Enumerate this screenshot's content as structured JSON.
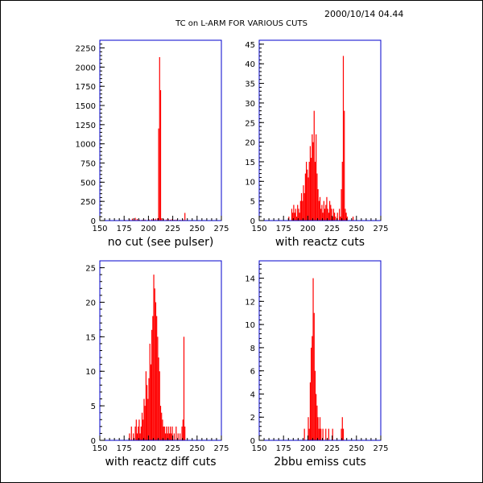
{
  "title": "TC on L-ARM FOR VARIOUS CUTS",
  "timestamp": "2000/10/14   04.44",
  "colors": {
    "frame": "#0000cc",
    "bars": "#ff0000",
    "text": "#000000"
  },
  "chart_data": [
    {
      "type": "bar",
      "subtitle": "no cut (see pulser)",
      "xlim": [
        150,
        275
      ],
      "ylim": [
        0,
        2350
      ],
      "xticks": [
        150,
        175,
        200,
        225,
        250,
        275
      ],
      "yticks": [
        0,
        250,
        500,
        750,
        1000,
        1250,
        1500,
        1750,
        2000,
        2250
      ],
      "bins": [
        [
          175,
          10
        ],
        [
          180,
          15
        ],
        [
          183,
          25
        ],
        [
          186,
          35
        ],
        [
          188,
          20
        ],
        [
          190,
          12
        ],
        [
          193,
          10
        ],
        [
          196,
          12
        ],
        [
          200,
          15
        ],
        [
          203,
          18
        ],
        [
          205,
          20
        ],
        [
          207,
          25
        ],
        [
          209,
          30
        ],
        [
          210,
          1200
        ],
        [
          211,
          2130
        ],
        [
          212,
          1700
        ],
        [
          213,
          30
        ],
        [
          215,
          20
        ],
        [
          218,
          15
        ],
        [
          220,
          18
        ],
        [
          222,
          12
        ],
        [
          224,
          20
        ],
        [
          226,
          10
        ],
        [
          228,
          12
        ],
        [
          232,
          10
        ],
        [
          235,
          15
        ],
        [
          237,
          100
        ]
      ]
    },
    {
      "type": "bar",
      "subtitle": "with reactz cuts",
      "xlim": [
        150,
        275
      ],
      "ylim": [
        0,
        46
      ],
      "xticks": [
        150,
        175,
        200,
        225,
        250,
        275
      ],
      "yticks": [
        0,
        5,
        10,
        15,
        20,
        25,
        30,
        35,
        40,
        45
      ],
      "bins": [
        [
          180,
          1
        ],
        [
          183,
          3
        ],
        [
          184,
          2
        ],
        [
          185,
          4
        ],
        [
          186,
          2
        ],
        [
          187,
          3
        ],
        [
          188,
          1
        ],
        [
          189,
          4
        ],
        [
          190,
          3
        ],
        [
          191,
          2
        ],
        [
          192,
          5
        ],
        [
          193,
          7
        ],
        [
          194,
          5
        ],
        [
          195,
          9
        ],
        [
          196,
          7
        ],
        [
          197,
          12
        ],
        [
          198,
          15
        ],
        [
          199,
          13
        ],
        [
          200,
          11
        ],
        [
          201,
          15
        ],
        [
          202,
          19
        ],
        [
          203,
          16
        ],
        [
          204,
          22
        ],
        [
          205,
          20
        ],
        [
          206,
          28
        ],
        [
          207,
          15
        ],
        [
          208,
          22
        ],
        [
          209,
          12
        ],
        [
          210,
          8
        ],
        [
          211,
          5
        ],
        [
          212,
          6
        ],
        [
          213,
          3
        ],
        [
          214,
          4
        ],
        [
          215,
          2
        ],
        [
          216,
          5
        ],
        [
          217,
          3
        ],
        [
          218,
          4
        ],
        [
          219,
          6
        ],
        [
          220,
          3
        ],
        [
          221,
          2
        ],
        [
          222,
          5
        ],
        [
          223,
          4
        ],
        [
          224,
          3
        ],
        [
          225,
          1
        ],
        [
          226,
          3
        ],
        [
          227,
          2
        ],
        [
          228,
          1
        ],
        [
          230,
          2
        ],
        [
          232,
          3
        ],
        [
          233,
          1
        ],
        [
          234,
          8
        ],
        [
          235,
          15
        ],
        [
          236,
          42
        ],
        [
          237,
          28
        ],
        [
          238,
          3
        ],
        [
          239,
          2
        ],
        [
          240,
          1
        ],
        [
          246,
          1
        ]
      ]
    },
    {
      "type": "bar",
      "subtitle": "with reactz diff cuts",
      "xlim": [
        150,
        275
      ],
      "ylim": [
        0,
        26
      ],
      "xticks": [
        150,
        175,
        200,
        225,
        250,
        275
      ],
      "yticks": [
        0,
        5,
        10,
        15,
        20,
        25
      ],
      "bins": [
        [
          180,
          1
        ],
        [
          182,
          2
        ],
        [
          184,
          1
        ],
        [
          186,
          2
        ],
        [
          187,
          3
        ],
        [
          188,
          1
        ],
        [
          189,
          2
        ],
        [
          190,
          3
        ],
        [
          191,
          1
        ],
        [
          192,
          2
        ],
        [
          193,
          4
        ],
        [
          194,
          3
        ],
        [
          195,
          6
        ],
        [
          196,
          5
        ],
        [
          197,
          10
        ],
        [
          198,
          8
        ],
        [
          199,
          6
        ],
        [
          200,
          9
        ],
        [
          201,
          14
        ],
        [
          202,
          11
        ],
        [
          203,
          16
        ],
        [
          204,
          18
        ],
        [
          205,
          24
        ],
        [
          206,
          22
        ],
        [
          207,
          20
        ],
        [
          208,
          18
        ],
        [
          209,
          15
        ],
        [
          210,
          12
        ],
        [
          211,
          10
        ],
        [
          212,
          5
        ],
        [
          213,
          4
        ],
        [
          214,
          3
        ],
        [
          215,
          2
        ],
        [
          216,
          2
        ],
        [
          217,
          1
        ],
        [
          218,
          2
        ],
        [
          219,
          1
        ],
        [
          220,
          2
        ],
        [
          221,
          1
        ],
        [
          222,
          2
        ],
        [
          223,
          1
        ],
        [
          224,
          2
        ],
        [
          226,
          1
        ],
        [
          228,
          2
        ],
        [
          230,
          1
        ],
        [
          232,
          1
        ],
        [
          234,
          2
        ],
        [
          235,
          3
        ],
        [
          236,
          15
        ],
        [
          237,
          2
        ]
      ]
    },
    {
      "type": "bar",
      "subtitle": "2bbu emiss cuts",
      "xlim": [
        150,
        275
      ],
      "ylim": [
        0,
        15.5
      ],
      "xticks": [
        150,
        175,
        200,
        225,
        250,
        275
      ],
      "yticks": [
        0,
        2,
        4,
        6,
        8,
        10,
        12,
        14
      ],
      "bins": [
        [
          196,
          1
        ],
        [
          200,
          2
        ],
        [
          201,
          1
        ],
        [
          202,
          5
        ],
        [
          203,
          8
        ],
        [
          204,
          9
        ],
        [
          205,
          14
        ],
        [
          206,
          11
        ],
        [
          207,
          6
        ],
        [
          208,
          4
        ],
        [
          209,
          3
        ],
        [
          210,
          2
        ],
        [
          211,
          1
        ],
        [
          212,
          2
        ],
        [
          213,
          1
        ],
        [
          215,
          1
        ],
        [
          218,
          1
        ],
        [
          221,
          1
        ],
        [
          225,
          1
        ],
        [
          234,
          1
        ],
        [
          235,
          2
        ],
        [
          236,
          1
        ]
      ]
    }
  ]
}
